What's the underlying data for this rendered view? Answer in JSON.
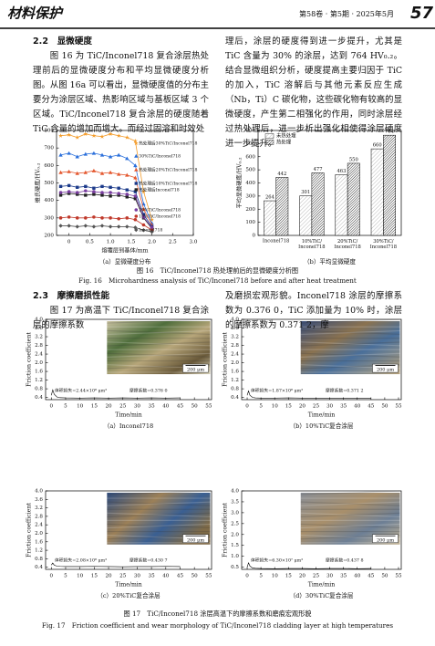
{
  "header": {
    "journal": "材料保护",
    "issue": "第58卷 · 第5期 · 2025年5月",
    "page": "57"
  },
  "sections": [
    {
      "heading": "2.2　显微硬度",
      "paragraphs": [
        "图 16 为 TiC/Inconel718 复合涂层热处理前后的显微硬度分布和平均显微硬度分析图。从图 16a 可以看出，显微硬度值的分布主要分为涂层区域、热影响区域与基板区域 3 个区域。TiC/Inconel718 复合涂层的硬度随着 TiC 含量的增加而增大。而经过固溶和时效处",
        "理后，涂层的硬度得到进一步提升，尤其是 TiC 含量为 30% 的涂层，达到 764 HV₀.₂。结合显微组织分析，硬度提高主要归因于 TiC 的加入，TiC 溶解后与其他元素反应生成（Nb，Ti）C 碳化物，这些碳化物有较高的显微硬度，产生第二相强化的作用，同时涂层经过热处理后，进一步析出强化相使得涂层硬度进一步提升。"
      ]
    },
    {
      "heading": "2.3　摩擦磨损性能",
      "paragraphs": [
        "图 17 为高温下 TiC/Inconel718 复合涂层的摩擦系数",
        "及磨损宏观形貌。Inconel718 涂层的摩擦系数为 0.376 0，TiC 添加量为 10% 时，涂层的摩擦系数为 0.371 2，摩"
      ]
    }
  ],
  "figures": [
    {
      "caption_zh": "图 16　TiC/Inconel718 热处理前后的显微硬度分析图",
      "caption_en": "Fig. 16　Microhardness analysis of TiC/Inconel718 before and after heat treatment"
    },
    {
      "caption_zh": "图 17　TiC/Inconel718 涂层高温下的摩擦系数和磨痕宏观形貌",
      "caption_en": "Fig. 17　Friction coefficient and wear morphology of TiC/Inconel718 cladding layer at high temperatures"
    }
  ],
  "chart_data": [
    {
      "type": "line",
      "caption": "（a）显微硬度分布",
      "xlabel": "熔覆层到基体/mm",
      "ylabel": "维氏硬度/HV₀.₂",
      "legend": "inline",
      "x": [
        -0.2,
        0,
        0.2,
        0.4,
        0.6,
        0.8,
        1.0,
        1.2,
        1.4,
        1.6,
        1.8,
        2.0
      ],
      "xlim": [
        -0.3,
        3.0
      ],
      "xticks": [
        0,
        0.5,
        {
          "value": 1,
          "label": "1.0"
        },
        1.5,
        {
          "value": 2,
          "label": "2.0"
        },
        2.5,
        {
          "value": 3,
          "label": "3.0"
        }
      ],
      "ylim": [
        200,
        800
      ],
      "yticks": [
        200,
        300,
        400,
        500,
        600,
        700,
        800
      ],
      "series": [
        {
          "name": "热处理后30%TiC/Inconel718",
          "color": "#f39c2b",
          "marker": "star",
          "values": [
            770,
            775,
            760,
            780,
            770,
            765,
            780,
            770,
            760,
            740,
            450,
            290
          ]
        },
        {
          "name": "30%TiC/Inconel718",
          "color": "#2a6fdb",
          "marker": "triangle",
          "values": [
            660,
            670,
            650,
            665,
            670,
            660,
            650,
            660,
            640,
            600,
            380,
            270
          ]
        },
        {
          "name": "热处理后20%TiC/Inconel718",
          "color": "#e4572e",
          "marker": "triangle",
          "values": [
            560,
            565,
            555,
            560,
            570,
            555,
            560,
            550,
            545,
            530,
            350,
            260
          ]
        },
        {
          "name": "热处理后10%TiC/Inconel718",
          "color": "#1b3a8a",
          "marker": "square",
          "values": [
            480,
            485,
            475,
            480,
            470,
            480,
            475,
            470,
            460,
            450,
            320,
            250
          ]
        },
        {
          "name": "热处理后Inconel718",
          "color": "#222222",
          "marker": "square",
          "values": [
            430,
            440,
            435,
            430,
            435,
            430,
            425,
            430,
            420,
            410,
            300,
            240
          ]
        },
        {
          "name": "20%TiC/Inconel718",
          "color": "#7a3fa0",
          "marker": "circle",
          "values": [
            445,
            450,
            445,
            455,
            450,
            445,
            445,
            440,
            435,
            425,
            305,
            245
          ]
        },
        {
          "name": "10%TiC/Inconel718",
          "color": "#c0392b",
          "marker": "circle",
          "values": [
            300,
            305,
            300,
            300,
            305,
            300,
            300,
            295,
            300,
            290,
            260,
            230
          ]
        },
        {
          "name": "Inconel718",
          "color": "#555555",
          "marker": "diamond",
          "values": [
            255,
            255,
            250,
            255,
            250,
            255,
            250,
            250,
            250,
            245,
            230,
            220
          ]
        }
      ]
    },
    {
      "type": "bar",
      "caption": "（b）平均显微硬度",
      "ylabel": "平均显微硬度/HV₀.₂",
      "legend": "upper left",
      "categories": [
        "Inconel718",
        "10%TiC/Inconel718",
        "20%TiC/Inconel718",
        "30%TiC/Inconel718"
      ],
      "ylim": [
        0,
        800
      ],
      "yticks": [
        0,
        100,
        200,
        300,
        400,
        500,
        600,
        700,
        800
      ],
      "series": [
        {
          "name": "未热处理",
          "color": "#8a8a8a",
          "values": [
            264,
            301,
            463,
            660
          ]
        },
        {
          "name": "热处理",
          "color": "#333333",
          "values": [
            442,
            477,
            550,
            764
          ]
        }
      ]
    },
    {
      "type": "line",
      "caption": "（a）Inconel718",
      "xlabel": "Time/min",
      "ylabel": "Friction coefficient",
      "color": "#000000",
      "annotations": [
        "体积损失=2.44×10⁸ μm³",
        "摩擦系数=0.376 0"
      ],
      "scale_bar": "200 μm",
      "x": [
        0,
        0.5,
        1,
        2,
        3,
        5,
        10,
        15,
        20,
        25,
        30,
        35,
        40,
        45
      ],
      "values": [
        0.5,
        0.75,
        0.55,
        0.42,
        0.39,
        0.38,
        0.37,
        0.38,
        0.37,
        0.38,
        0.37,
        0.38,
        0.37,
        0.38
      ],
      "xlim": [
        -2,
        56
      ],
      "xticks": [
        0,
        5,
        10,
        15,
        20,
        25,
        30,
        35,
        40,
        45,
        50,
        55
      ],
      "ylim": [
        0.3,
        4.0
      ],
      "yticks": [
        0.4,
        0.8,
        1.2,
        1.6,
        {
          "value": 2,
          "label": "2.0"
        },
        2.4,
        2.8,
        3.2,
        3.6,
        {
          "value": 4,
          "label": "4.0"
        }
      ]
    },
    {
      "type": "line",
      "caption": "（b）10%TiC复合涂层",
      "xlabel": "Time/min",
      "ylabel": "Friction coefficient",
      "color": "#000000",
      "annotations": [
        "体积损失=1.87×10⁸ μm³",
        "摩擦系数=0.371 2"
      ],
      "scale_bar": "200 μm",
      "x": [
        0,
        0.5,
        1,
        2,
        3,
        5,
        10,
        15,
        20,
        25,
        30,
        35,
        40,
        45
      ],
      "values": [
        0.5,
        0.7,
        0.5,
        0.4,
        0.38,
        0.37,
        0.37,
        0.38,
        0.37,
        0.37,
        0.36,
        0.37,
        0.37,
        0.37
      ],
      "xlim": [
        -2,
        56
      ],
      "xticks": [
        0,
        5,
        10,
        15,
        20,
        25,
        30,
        35,
        40,
        45,
        50,
        55
      ],
      "ylim": [
        0.3,
        4.0
      ],
      "yticks": [
        0.4,
        0.8,
        1.2,
        1.6,
        {
          "value": 2,
          "label": "2.0"
        },
        2.4,
        2.8,
        3.2,
        3.6,
        {
          "value": 4,
          "label": "4.0"
        }
      ]
    },
    {
      "type": "line",
      "caption": "（c）20%TiC复合涂层",
      "xlabel": "Time/min",
      "ylabel": "Friction coefficient",
      "color": "#000000",
      "annotations": [
        "体积损失=2.08×10⁸ μm³",
        "摩擦系数=0.430 7"
      ],
      "scale_bar": "200 μm",
      "x": [
        0,
        0.5,
        1,
        2,
        3,
        5,
        10,
        15,
        20,
        25,
        30,
        35,
        40,
        45
      ],
      "values": [
        0.5,
        0.6,
        0.5,
        0.45,
        0.44,
        0.43,
        0.43,
        0.44,
        0.43,
        0.42,
        0.43,
        0.43,
        0.44,
        0.43
      ],
      "xlim": [
        -2,
        56
      ],
      "xticks": [
        0,
        5,
        10,
        15,
        20,
        25,
        30,
        35,
        40,
        45,
        50,
        55
      ],
      "ylim": [
        0.3,
        4.0
      ],
      "yticks": [
        0.4,
        0.8,
        1.2,
        1.6,
        {
          "value": 2,
          "label": "2.0"
        },
        2.4,
        2.8,
        3.2,
        3.6,
        {
          "value": 4,
          "label": "4.0"
        }
      ]
    },
    {
      "type": "line",
      "caption": "（d）30%TiC复合涂层",
      "xlabel": "Time/min",
      "ylabel": "Friction coefficient",
      "color": "#000000",
      "annotations": [
        "体积损失=6.30×10⁷ μm³",
        "摩擦系数=0.437 8"
      ],
      "scale_bar": "200 μm",
      "x": [
        0,
        0.5,
        1,
        2,
        3,
        5,
        10,
        15,
        20,
        25,
        30,
        35,
        40,
        45
      ],
      "values": [
        0.5,
        0.7,
        0.55,
        0.46,
        0.45,
        0.44,
        0.43,
        0.44,
        0.44,
        0.43,
        0.44,
        0.44,
        0.43,
        0.44
      ],
      "xlim": [
        -2,
        56
      ],
      "xticks": [
        0,
        5,
        10,
        15,
        20,
        25,
        30,
        35,
        40,
        45,
        50,
        55
      ],
      "ylim": [
        0.4,
        4.0
      ],
      "yticks": [
        0.5,
        {
          "value": 1,
          "label": "1.0"
        },
        1.5,
        {
          "value": 2,
          "label": "2.0"
        },
        2.5,
        {
          "value": 3,
          "label": "3.0"
        },
        3.5,
        {
          "value": 4,
          "label": "4.0"
        }
      ]
    }
  ]
}
